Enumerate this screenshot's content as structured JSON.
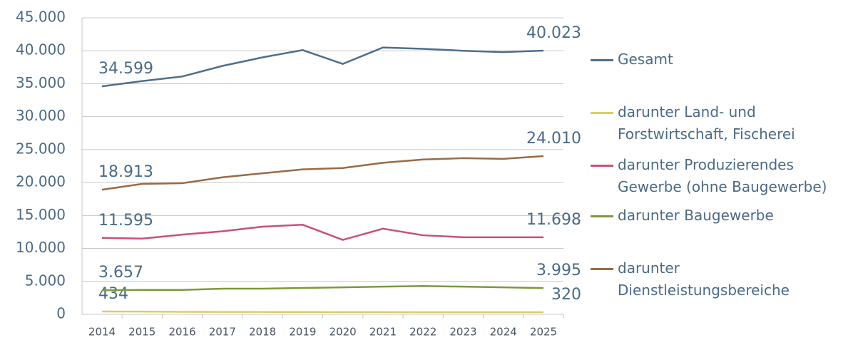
{
  "chart_data": {
    "type": "line",
    "categories": [
      "2014",
      "2015",
      "2016",
      "2017",
      "2018",
      "2019",
      "2020",
      "2021",
      "2022",
      "2023",
      "2024",
      "2025"
    ],
    "ylim": [
      0,
      45000
    ],
    "yticks": [
      {
        "value": 0,
        "label": "0"
      },
      {
        "value": 5000,
        "label": "5.000"
      },
      {
        "value": 10000,
        "label": "10.000"
      },
      {
        "value": 15000,
        "label": "15.000"
      },
      {
        "value": 20000,
        "label": "20.000"
      },
      {
        "value": 25000,
        "label": "25.000"
      },
      {
        "value": 30000,
        "label": "30.000"
      },
      {
        "value": 35000,
        "label": "35.000"
      },
      {
        "value": 40000,
        "label": "40.000"
      },
      {
        "value": 45000,
        "label": "45.000"
      }
    ],
    "grid": true,
    "series": [
      {
        "name": "Gesamt",
        "color": "#4e6e8a",
        "values": [
          34599,
          35400,
          36100,
          37700,
          39000,
          40100,
          38000,
          40500,
          40300,
          40000,
          39800,
          40023
        ],
        "value_labels": [
          "34.599",
          null,
          null,
          null,
          null,
          null,
          null,
          null,
          null,
          null,
          null,
          "40.023"
        ]
      },
      {
        "name": "darunter Land- und Forstwirtschaft, Fischerei",
        "color": "#dccb6e",
        "values": [
          434,
          420,
          380,
          370,
          360,
          350,
          340,
          340,
          330,
          330,
          320,
          320
        ],
        "value_labels": [
          "434",
          null,
          null,
          null,
          null,
          null,
          null,
          null,
          null,
          null,
          null,
          "320"
        ]
      },
      {
        "name": "darunter Produzierendes Gewerbe (ohne Baugewerbe)",
        "color": "#c9507a",
        "values": [
          11595,
          11500,
          12100,
          12600,
          13300,
          13600,
          11300,
          13000,
          12000,
          11700,
          11700,
          11698
        ],
        "value_labels": [
          "11.595",
          null,
          null,
          null,
          null,
          null,
          null,
          null,
          null,
          null,
          null,
          "11.698"
        ]
      },
      {
        "name": "darunter Baugewerbe",
        "color": "#7a9a3a",
        "values": [
          3657,
          3700,
          3700,
          3900,
          3900,
          4000,
          4100,
          4200,
          4300,
          4200,
          4100,
          3995
        ],
        "value_labels": [
          "3.657",
          null,
          null,
          null,
          null,
          null,
          null,
          null,
          null,
          null,
          null,
          "3.995"
        ]
      },
      {
        "name": "darunter Dienstleistungsbereiche",
        "color": "#9a6a44",
        "values": [
          18913,
          19800,
          19900,
          20800,
          21400,
          22000,
          22200,
          23000,
          23500,
          23700,
          23600,
          24010
        ],
        "value_labels": [
          "18.913",
          null,
          null,
          null,
          null,
          null,
          null,
          null,
          null,
          null,
          null,
          "24.010"
        ]
      }
    ]
  }
}
